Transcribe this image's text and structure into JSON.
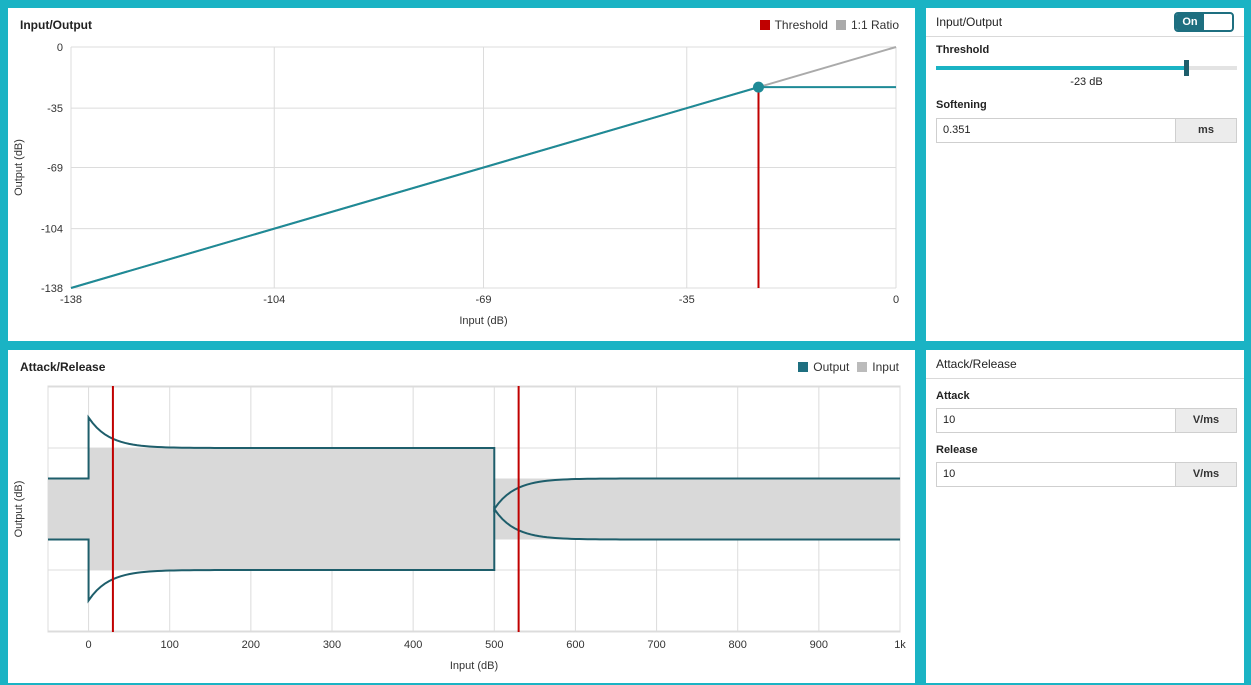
{
  "io_chart": {
    "title": "Input/Output",
    "legend": [
      {
        "label": "Threshold",
        "color": "#c00000"
      },
      {
        "label": "1:1 Ratio",
        "color": "#aaaaaa"
      }
    ]
  },
  "ar_chart": {
    "title": "Attack/Release",
    "legend": [
      {
        "label": "Output",
        "color": "#1e6f80"
      },
      {
        "label": "Input",
        "color": "#bbbbbb"
      }
    ]
  },
  "io_settings": {
    "title": "Input/Output",
    "toggle_label": "On",
    "threshold_label": "Threshold",
    "threshold_value": "-23 dB",
    "threshold_fraction": 0.83,
    "softening_label": "Softening",
    "softening_value": "0.351",
    "softening_unit": "ms"
  },
  "ar_settings": {
    "title": "Attack/Release",
    "attack_label": "Attack",
    "attack_value": "10",
    "attack_unit": "V/ms",
    "release_label": "Release",
    "release_value": "10",
    "release_unit": "V/ms"
  },
  "chart_data": [
    {
      "type": "line",
      "title": "Input/Output",
      "xlabel": "Input (dB)",
      "ylabel": "Output (dB)",
      "xlim": [
        -138,
        0
      ],
      "ylim": [
        -138,
        0
      ],
      "x_ticks": [
        "-138",
        "-104",
        "-69",
        "-35",
        "0"
      ],
      "y_ticks": [
        "0",
        "-35",
        "-69",
        "-104",
        "-138"
      ],
      "threshold": -23,
      "series": [
        {
          "name": "1:1 Ratio",
          "color": "#aaaaaa",
          "points": [
            [
              -138,
              -138
            ],
            [
              0,
              0
            ]
          ]
        },
        {
          "name": "Output",
          "color": "#1e8a96",
          "points": [
            [
              -138,
              -138
            ],
            [
              -23,
              -23
            ],
            [
              0,
              -23
            ]
          ]
        },
        {
          "name": "Threshold",
          "color": "#c00000",
          "points": [
            [
              -23,
              -138
            ],
            [
              -23,
              -23
            ]
          ]
        }
      ]
    },
    {
      "type": "area",
      "title": "Attack/Release",
      "xlabel": "Input (dB)",
      "ylabel": "Output (dB)",
      "xlim": [
        -50,
        1000
      ],
      "x_ticks": [
        "0",
        "100",
        "200",
        "300",
        "400",
        "500",
        "600",
        "700",
        "800",
        "900",
        "1k"
      ],
      "markers_x": [
        30,
        530
      ],
      "input_envelope": [
        [
          -50,
          0.5
        ],
        [
          0,
          0.5
        ],
        [
          0,
          1
        ],
        [
          500,
          1
        ],
        [
          500,
          0.5
        ],
        [
          1000,
          0.5
        ]
      ],
      "output_envelope": [
        [
          -50,
          0.5
        ],
        [
          0,
          0.5
        ],
        [
          0,
          1.5
        ],
        [
          30,
          1.15
        ],
        [
          100,
          1.02
        ],
        [
          500,
          1.0
        ],
        [
          500,
          0.0
        ],
        [
          530,
          0.3
        ],
        [
          600,
          0.47
        ],
        [
          1000,
          0.5
        ]
      ]
    }
  ]
}
